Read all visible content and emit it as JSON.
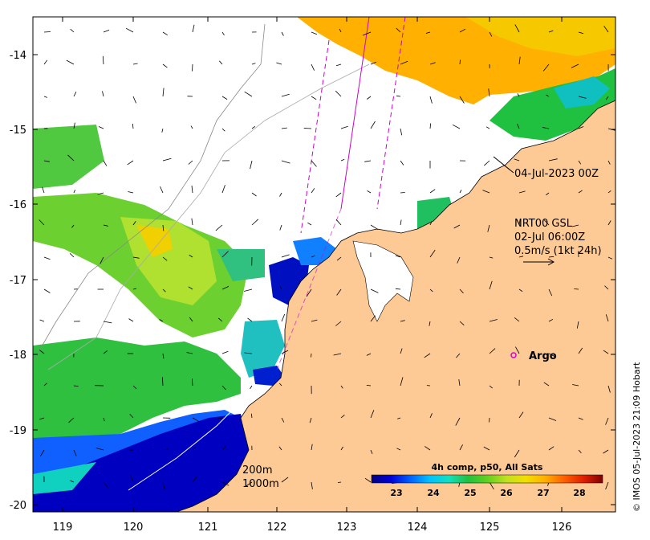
{
  "x_ticks": [
    "119",
    "120",
    "121",
    "122",
    "123",
    "124",
    "125",
    "126"
  ],
  "y_ticks": [
    "-14",
    "-15",
    "-16",
    "-17",
    "-18",
    "-19",
    "-20"
  ],
  "annotations": {
    "date_label": "04-Jul-2023 00Z",
    "current_title": "NRT00 GSL",
    "current_date": "02-Jul 06:00Z",
    "current_scale": "0.5m/s (1kt 24h)",
    "argo_label": "Argo",
    "contour_200": "200m",
    "contour_1000": "1000m"
  },
  "colorbar": {
    "title": "4h comp, p50, All Sats",
    "labels": [
      "23",
      "24",
      "25",
      "26",
      "27",
      "28"
    ],
    "stops": [
      "#00007f",
      "#0000d9",
      "#0060ff",
      "#00c0ff",
      "#10e0c0",
      "#20c040",
      "#60d020",
      "#c0e020",
      "#f0e000",
      "#ffb000",
      "#ff6000",
      "#e02000",
      "#800000"
    ]
  },
  "credit": "© IMOS 05-Jul-2023 21:09 Hobart",
  "colors": {
    "land": "#fdc994",
    "argo": "#d400d4",
    "track": "#cc00cc"
  }
}
